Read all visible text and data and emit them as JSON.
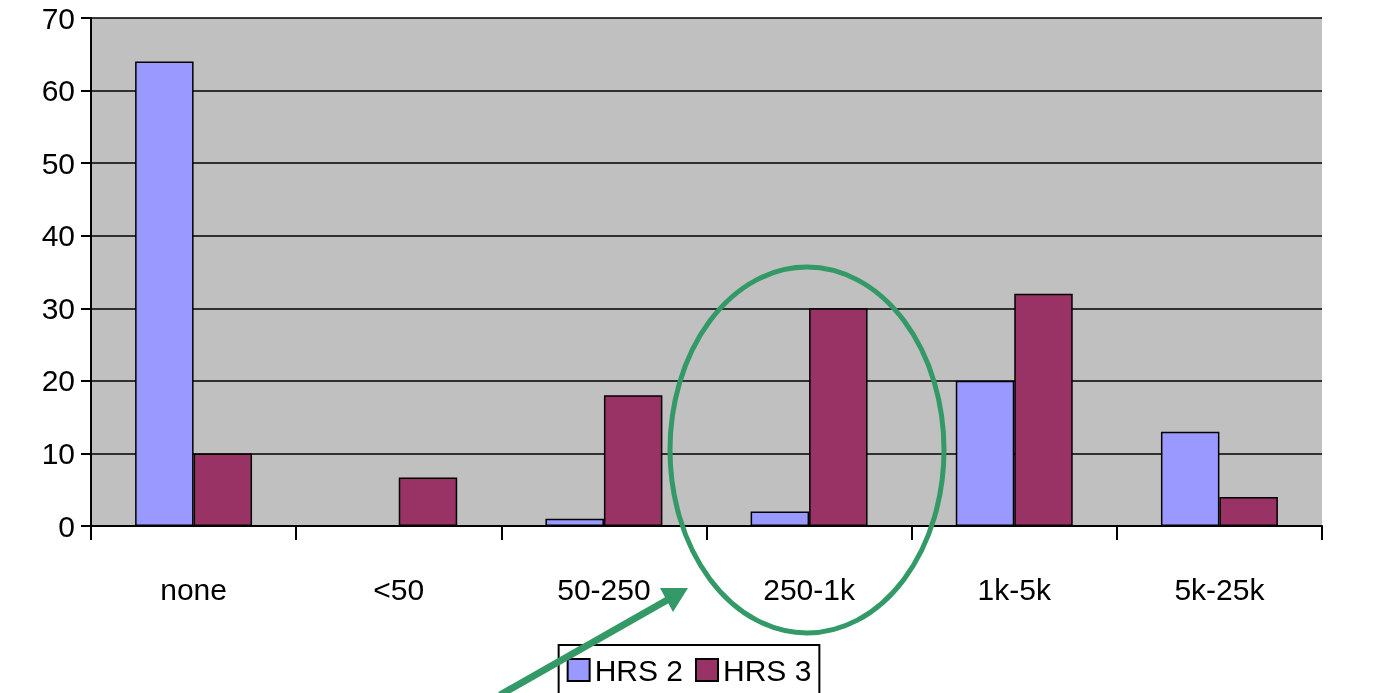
{
  "chart_data": {
    "type": "bar",
    "categories": [
      "none",
      "<50",
      "50-250",
      "250-1k",
      "1k-5k",
      "5k-25k"
    ],
    "series": [
      {
        "name": "HRS 2",
        "color": "#9999ff",
        "values": [
          64,
          null,
          1,
          2,
          20,
          13
        ]
      },
      {
        "name": "HRS 3",
        "color": "#993366",
        "values": [
          10,
          6.7,
          18,
          30,
          32,
          4
        ]
      }
    ],
    "ylim": [
      0,
      70
    ],
    "yticks": [
      0,
      10,
      20,
      30,
      40,
      50,
      60,
      70
    ],
    "grid": "y",
    "legend": "bottom"
  }
}
